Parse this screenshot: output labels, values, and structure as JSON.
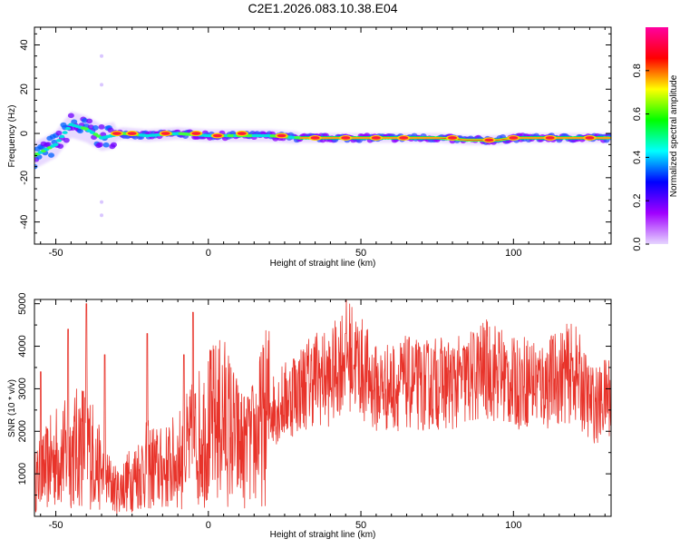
{
  "title": "C2E1.2026.083.10.38.E04",
  "colors": {
    "snr_line": "#e8332a",
    "frame": "#000000"
  },
  "chart_data": [
    {
      "type": "heatmap",
      "xlabel": "Height of straight line (km)",
      "ylabel": "Frequency (Hz)",
      "xlim": [
        -57,
        132
      ],
      "ylim": [
        -50,
        48
      ],
      "xticks": [
        "-50",
        "0",
        "50",
        "100"
      ],
      "xtick_values": [
        -50,
        0,
        50,
        100
      ],
      "yticks": [
        "-40",
        "-20",
        "0",
        "20",
        "40"
      ],
      "ytick_values": [
        -40,
        -20,
        0,
        20,
        40
      ],
      "colorbar": {
        "label": "Normalized spectral amplitude",
        "range": [
          0,
          1
        ],
        "ticks": [
          "0.0",
          "0.2",
          "0.4",
          "0.6",
          "0.8"
        ],
        "tick_values": [
          0.0,
          0.2,
          0.4,
          0.6,
          0.8
        ],
        "colormap": [
          "#e6d6ff",
          "#a000ff",
          "#0000ff",
          "#00ffff",
          "#00ff00",
          "#ffff00",
          "#ff0000",
          "#ff00a0"
        ]
      },
      "ridge": [
        [
          -57,
          -10
        ],
        [
          -50,
          -5
        ],
        [
          -45,
          4
        ],
        [
          -40,
          2
        ],
        [
          -35,
          -2
        ],
        [
          -28,
          0
        ],
        [
          -20,
          -1
        ],
        [
          -10,
          0
        ],
        [
          0,
          -1
        ],
        [
          10,
          -1
        ],
        [
          20,
          -1
        ],
        [
          30,
          -2
        ],
        [
          40,
          -2
        ],
        [
          60,
          -2
        ],
        [
          75,
          -2
        ],
        [
          85,
          -3
        ],
        [
          90,
          -3
        ],
        [
          95,
          -3
        ],
        [
          100,
          -2
        ],
        [
          110,
          -2
        ],
        [
          120,
          -2
        ],
        [
          132,
          -2
        ]
      ],
      "hot_spots": [
        [
          -30,
          0
        ],
        [
          -25,
          0
        ],
        [
          -14,
          0
        ],
        [
          -4,
          0
        ],
        [
          3,
          -1
        ],
        [
          11,
          0
        ],
        [
          24,
          -1
        ],
        [
          35,
          -2
        ],
        [
          45,
          -2
        ],
        [
          55,
          -2
        ],
        [
          64,
          -2
        ],
        [
          80,
          -2
        ],
        [
          92,
          -3
        ],
        [
          100,
          -2
        ],
        [
          112,
          -2
        ],
        [
          125,
          -2
        ]
      ],
      "outliers": [
        [
          -35,
          35
        ],
        [
          -35,
          22
        ],
        [
          -35,
          -31
        ],
        [
          -35,
          -37
        ]
      ]
    },
    {
      "type": "line",
      "xlabel": "Height of straight line (km)",
      "ylabel": "SNR (10 * v/v)",
      "xlim": [
        -57,
        132
      ],
      "ylim": [
        0,
        5100
      ],
      "xticks": [
        "-50",
        "0",
        "50",
        "100"
      ],
      "xtick_values": [
        -50,
        0,
        50,
        100
      ],
      "yticks": [
        "1000",
        "2000",
        "3000",
        "4000",
        "5000"
      ],
      "ytick_values": [
        1000,
        2000,
        3000,
        4000,
        5000
      ],
      "envelope": [
        [
          -57,
          800
        ],
        [
          -50,
          1400
        ],
        [
          -45,
          1500
        ],
        [
          -40,
          1800
        ],
        [
          -35,
          1000
        ],
        [
          -30,
          600
        ],
        [
          -25,
          900
        ],
        [
          -20,
          1200
        ],
        [
          -15,
          1100
        ],
        [
          -10,
          1300
        ],
        [
          -5,
          1700
        ],
        [
          0,
          2100
        ],
        [
          5,
          2300
        ],
        [
          10,
          1700
        ],
        [
          13,
          1500
        ],
        [
          20,
          2500
        ],
        [
          25,
          2700
        ],
        [
          30,
          3000
        ],
        [
          35,
          3300
        ],
        [
          40,
          3200
        ],
        [
          45,
          3900
        ],
        [
          50,
          3500
        ],
        [
          55,
          3000
        ],
        [
          60,
          3050
        ],
        [
          65,
          3150
        ],
        [
          70,
          3050
        ],
        [
          75,
          3150
        ],
        [
          80,
          3100
        ],
        [
          85,
          3200
        ],
        [
          90,
          3450
        ],
        [
          95,
          3400
        ],
        [
          100,
          3100
        ],
        [
          105,
          3200
        ],
        [
          110,
          3100
        ],
        [
          115,
          3300
        ],
        [
          120,
          3400
        ],
        [
          125,
          2700
        ],
        [
          128,
          2600
        ],
        [
          132,
          2950
        ]
      ],
      "spikes": [
        [
          -40,
          5000
        ],
        [
          -46,
          4400
        ],
        [
          -34,
          3800
        ],
        [
          -20,
          4300
        ],
        [
          -5,
          4800
        ],
        [
          -8,
          3800
        ],
        [
          -55,
          3400
        ],
        [
          13,
          2800
        ],
        [
          45,
          4300
        ],
        [
          28,
          3700
        ]
      ]
    }
  ]
}
